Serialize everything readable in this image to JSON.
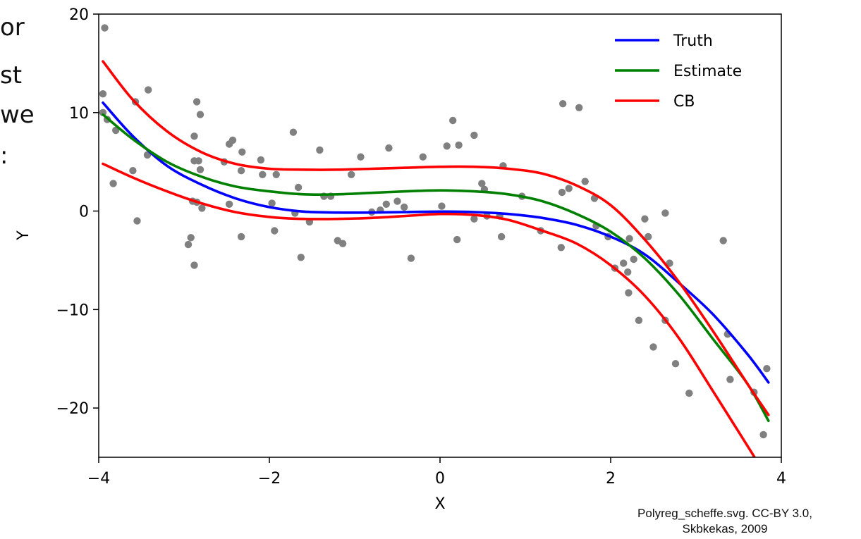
{
  "background_text": [
    "or",
    "st",
    "we",
    ":"
  ],
  "caption": {
    "line1": "Polyreg_scheffe.svg.  CC-BY 3.0,",
    "line2": "Skbkekas, 2009"
  },
  "chart_data": {
    "type": "line",
    "title": "",
    "xlabel": "X",
    "ylabel": "Y",
    "xlim": [
      -4.0,
      4.0
    ],
    "ylim": [
      -25,
      20
    ],
    "xticks": [
      -4,
      -2,
      0,
      2,
      4
    ],
    "xtick_labels": [
      "−4",
      "−2",
      "0",
      "2",
      "4"
    ],
    "yticks": [
      -20,
      -10,
      0,
      10,
      20
    ],
    "ytick_labels": [
      "−20",
      "−10",
      "0",
      "10",
      "20"
    ],
    "grid": false,
    "legend_position": "top-right",
    "series": [
      {
        "name": "Truth",
        "color": "#0000ff",
        "x": [
          -3.95,
          -3.6,
          -3.2,
          -2.8,
          -2.4,
          -2.0,
          -1.6,
          -1.2,
          -0.8,
          -0.4,
          0.0,
          0.4,
          0.8,
          1.2,
          1.6,
          2.0,
          2.4,
          2.8,
          3.2,
          3.6,
          3.85
        ],
        "y": [
          11.0,
          7.6,
          4.6,
          2.7,
          1.3,
          0.4,
          -0.05,
          -0.15,
          -0.15,
          -0.1,
          -0.05,
          -0.1,
          -0.3,
          -0.7,
          -1.4,
          -2.6,
          -4.4,
          -7.3,
          -10.5,
          -14.5,
          -17.4
        ]
      },
      {
        "name": "Estimate",
        "color": "#008000",
        "x": [
          -3.95,
          -3.6,
          -3.2,
          -2.8,
          -2.4,
          -2.0,
          -1.6,
          -1.2,
          -0.8,
          -0.4,
          0.0,
          0.4,
          0.8,
          1.2,
          1.6,
          2.0,
          2.4,
          2.8,
          3.2,
          3.6,
          3.85
        ],
        "y": [
          9.8,
          7.3,
          5.0,
          3.5,
          2.5,
          2.0,
          1.7,
          1.7,
          1.85,
          2.0,
          2.1,
          2.0,
          1.7,
          1.0,
          -0.3,
          -2.1,
          -4.8,
          -8.5,
          -13.0,
          -17.5,
          -21.3
        ]
      },
      {
        "name": "CB",
        "color": "#ff0000",
        "x": [
          -3.95,
          -3.6,
          -3.2,
          -2.8,
          -2.4,
          -2.0,
          -1.6,
          -1.2,
          -0.8,
          -0.4,
          0.0,
          0.4,
          0.8,
          1.2,
          1.6,
          2.0,
          2.4,
          2.8,
          3.2,
          3.6,
          3.85
        ],
        "y": [
          15.2,
          11.3,
          8.1,
          6.0,
          4.8,
          4.3,
          4.2,
          4.2,
          4.3,
          4.4,
          4.5,
          4.5,
          4.3,
          3.8,
          2.6,
          0.6,
          -2.9,
          -7.2,
          -12.2,
          -17.5,
          -20.7
        ]
      },
      {
        "name": "",
        "color": "#ff0000",
        "x": [
          -3.95,
          -3.6,
          -3.2,
          -2.8,
          -2.4,
          -2.0,
          -1.6,
          -1.2,
          -0.8,
          -0.4,
          0.0,
          0.4,
          0.8,
          1.2,
          1.6,
          2.0,
          2.4,
          2.8,
          3.2,
          3.6,
          3.7
        ],
        "y": [
          4.8,
          3.4,
          2.0,
          0.8,
          -0.1,
          -0.6,
          -0.8,
          -0.8,
          -0.7,
          -0.5,
          -0.3,
          -0.4,
          -0.9,
          -2.0,
          -3.3,
          -5.5,
          -8.6,
          -12.9,
          -18.3,
          -23.8,
          -25.2
        ]
      }
    ],
    "scatter": {
      "color": "#808080",
      "points": [
        [
          -3.93,
          18.6
        ],
        [
          -3.95,
          11.9
        ],
        [
          -3.95,
          10.0
        ],
        [
          -3.9,
          9.3
        ],
        [
          -3.8,
          8.2
        ],
        [
          -3.83,
          2.8
        ],
        [
          -3.55,
          -1.0
        ],
        [
          -3.6,
          4.1
        ],
        [
          -3.57,
          11.1
        ],
        [
          -3.42,
          12.3
        ],
        [
          -3.43,
          5.7
        ],
        [
          -2.88,
          -5.5
        ],
        [
          -2.95,
          -3.4
        ],
        [
          -2.92,
          -2.7
        ],
        [
          -2.9,
          1.0
        ],
        [
          -2.85,
          0.9
        ],
        [
          -2.79,
          0.3
        ],
        [
          -2.88,
          5.1
        ],
        [
          -2.83,
          5.1
        ],
        [
          -2.81,
          4.2
        ],
        [
          -2.88,
          7.6
        ],
        [
          -2.85,
          11.1
        ],
        [
          -2.81,
          9.8
        ],
        [
          -2.53,
          5.0
        ],
        [
          -2.47,
          6.8
        ],
        [
          -2.43,
          7.2
        ],
        [
          -2.47,
          0.7
        ],
        [
          -2.33,
          -2.6
        ],
        [
          -2.33,
          4.1
        ],
        [
          -2.32,
          6.0
        ],
        [
          -2.1,
          5.2
        ],
        [
          -2.08,
          3.7
        ],
        [
          -1.97,
          0.8
        ],
        [
          -1.94,
          -2.0
        ],
        [
          -1.92,
          3.7
        ],
        [
          -1.72,
          8.0
        ],
        [
          -1.7,
          -0.2
        ],
        [
          -1.66,
          2.4
        ],
        [
          -1.63,
          -4.7
        ],
        [
          -1.53,
          -1.1
        ],
        [
          -1.41,
          6.2
        ],
        [
          -1.36,
          1.5
        ],
        [
          -1.28,
          1.5
        ],
        [
          -1.2,
          -3.0
        ],
        [
          -1.14,
          -3.3
        ],
        [
          -1.04,
          3.7
        ],
        [
          -0.93,
          5.5
        ],
        [
          -0.8,
          -0.1
        ],
        [
          -0.7,
          0.1
        ],
        [
          -0.63,
          0.7
        ],
        [
          -0.6,
          6.4
        ],
        [
          -0.5,
          1.0
        ],
        [
          -0.42,
          0.4
        ],
        [
          -0.34,
          -4.8
        ],
        [
          -0.2,
          5.5
        ],
        [
          0.02,
          0.5
        ],
        [
          0.08,
          6.6
        ],
        [
          0.15,
          9.2
        ],
        [
          0.2,
          -2.9
        ],
        [
          0.22,
          6.7
        ],
        [
          0.4,
          7.7
        ],
        [
          0.4,
          -0.8
        ],
        [
          0.49,
          2.8
        ],
        [
          0.52,
          2.2
        ],
        [
          0.55,
          -0.5
        ],
        [
          0.7,
          -0.5
        ],
        [
          0.72,
          -2.6
        ],
        [
          0.74,
          4.6
        ],
        [
          0.96,
          1.5
        ],
        [
          1.18,
          -2.0
        ],
        [
          1.42,
          -3.7
        ],
        [
          1.44,
          10.9
        ],
        [
          1.43,
          1.9
        ],
        [
          1.51,
          2.3
        ],
        [
          1.63,
          10.5
        ],
        [
          1.7,
          3.0
        ],
        [
          1.81,
          1.3
        ],
        [
          1.83,
          -1.5
        ],
        [
          1.97,
          -2.6
        ],
        [
          2.05,
          -5.8
        ],
        [
          2.15,
          -5.3
        ],
        [
          2.2,
          -6.2
        ],
        [
          2.21,
          -8.3
        ],
        [
          2.22,
          -2.8
        ],
        [
          2.27,
          -4.9
        ],
        [
          2.33,
          -11.1
        ],
        [
          2.4,
          -0.8
        ],
        [
          2.44,
          -2.6
        ],
        [
          2.5,
          -13.8
        ],
        [
          2.64,
          -0.2
        ],
        [
          2.64,
          -11.1
        ],
        [
          2.69,
          -5.3
        ],
        [
          2.76,
          -15.5
        ],
        [
          2.92,
          -18.5
        ],
        [
          3.32,
          -3.0
        ],
        [
          3.37,
          -12.5
        ],
        [
          3.4,
          -17.1
        ],
        [
          3.68,
          -18.4
        ],
        [
          3.79,
          -22.7
        ],
        [
          3.83,
          -16.0
        ]
      ]
    }
  }
}
